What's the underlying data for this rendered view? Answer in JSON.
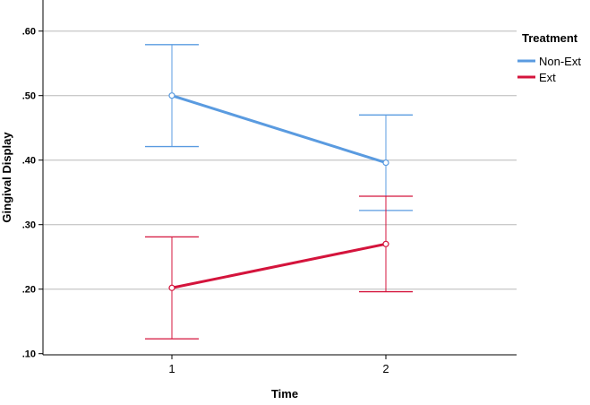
{
  "chart_data": {
    "type": "line",
    "title": "",
    "xlabel": "Time",
    "ylabel": "Gingival Display",
    "categories": [
      "1",
      "2"
    ],
    "ylim": [
      0.1,
      0.65
    ],
    "yticks": [
      0.1,
      0.2,
      0.3,
      0.4,
      0.5,
      0.6
    ],
    "ytick_labels": [
      ".10",
      ".20",
      ".30",
      ".40",
      ".50",
      ".60"
    ],
    "grid": "horizontal",
    "legend": {
      "title": "Treatment",
      "placement": "right"
    },
    "series": [
      {
        "name": "Non-Ext",
        "color": "#5a9be0",
        "values": [
          0.5,
          0.396
        ],
        "error_low": [
          0.421,
          0.322
        ],
        "error_high": [
          0.579,
          0.47
        ]
      },
      {
        "name": "Ext",
        "color": "#d4143c",
        "values": [
          0.202,
          0.27
        ],
        "error_low": [
          0.123,
          0.196
        ],
        "error_high": [
          0.281,
          0.344
        ]
      }
    ]
  }
}
